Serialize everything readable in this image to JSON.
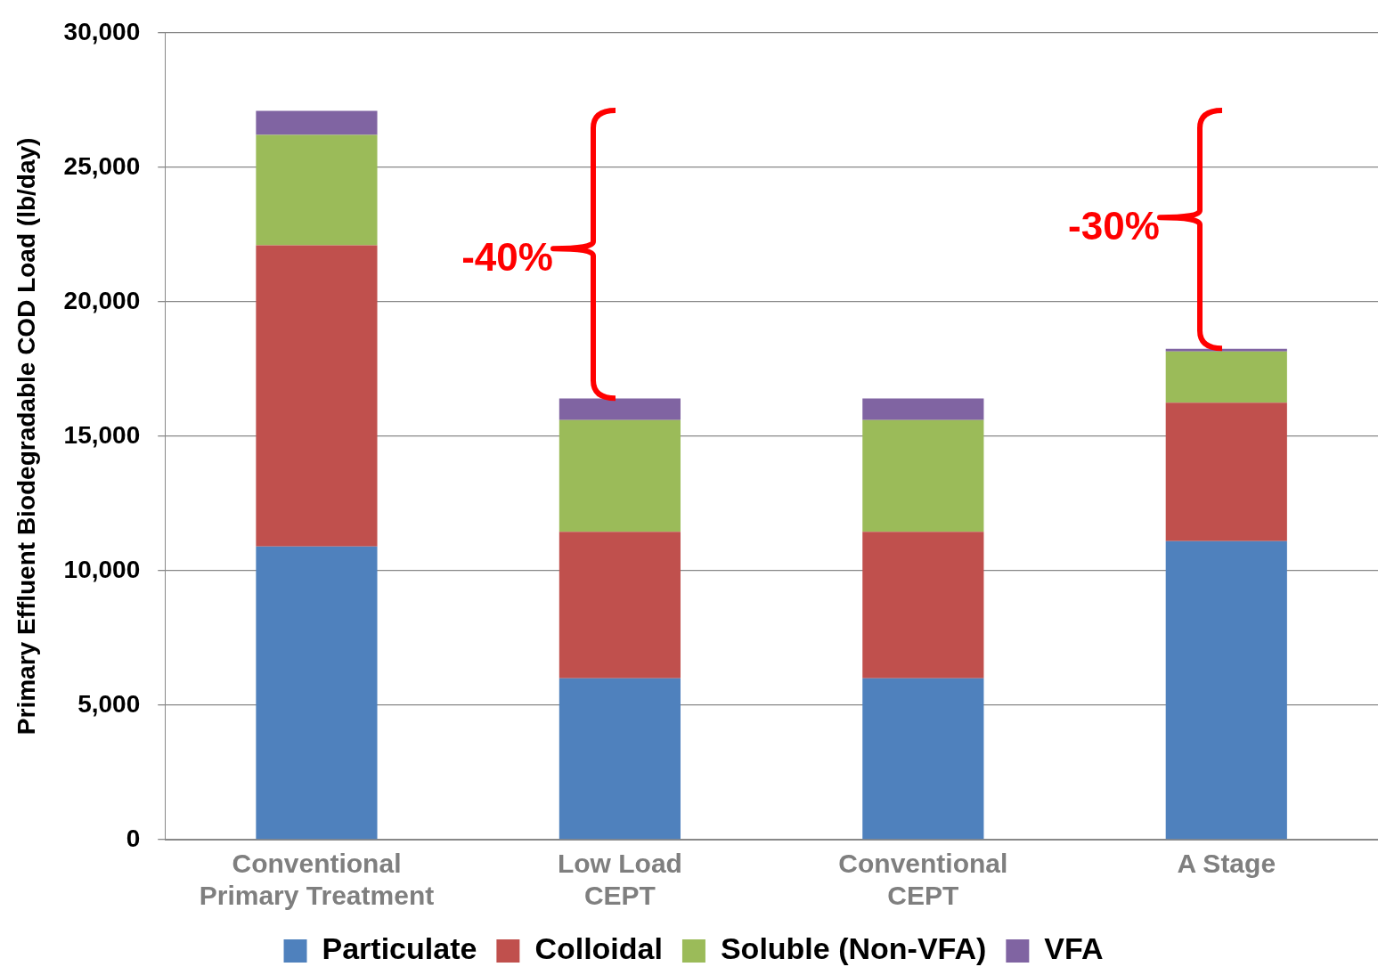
{
  "chart_data": {
    "type": "bar",
    "stacked": true,
    "ylabel": "Primary Effluent Biodegradable COD Load (lb/day)",
    "categories": [
      "Conventional Primary Treatment",
      "Low Load CEPT",
      "Conventional CEPT",
      "A Stage"
    ],
    "series": [
      {
        "name": "Particulate",
        "color": "#4f81bd",
        "values": [
          10900,
          6000,
          6000,
          11100
        ]
      },
      {
        "name": "Colloidal",
        "color": "#c0504d",
        "values": [
          11200,
          5450,
          5450,
          5150
        ]
      },
      {
        "name": "Soluble (Non-VFA)",
        "color": "#9bbb59",
        "values": [
          4100,
          4150,
          4150,
          1900
        ]
      },
      {
        "name": "VFA",
        "color": "#8064a2",
        "values": [
          900,
          800,
          800,
          100
        ]
      }
    ],
    "ylim": [
      0,
      30000
    ],
    "yticks": [
      0,
      {
        "value": 5000,
        "label": "5,000"
      },
      {
        "value": 10000,
        "label": "10,000"
      },
      {
        "value": 15000,
        "label": "15,000"
      },
      {
        "value": 20000,
        "label": "20,000"
      },
      {
        "value": 25000,
        "label": "25,000"
      },
      {
        "value": 30000,
        "label": "30,000"
      }
    ],
    "grid": "y",
    "legend": "bottom",
    "annotations": [
      "-40%",
      "-30%"
    ]
  }
}
